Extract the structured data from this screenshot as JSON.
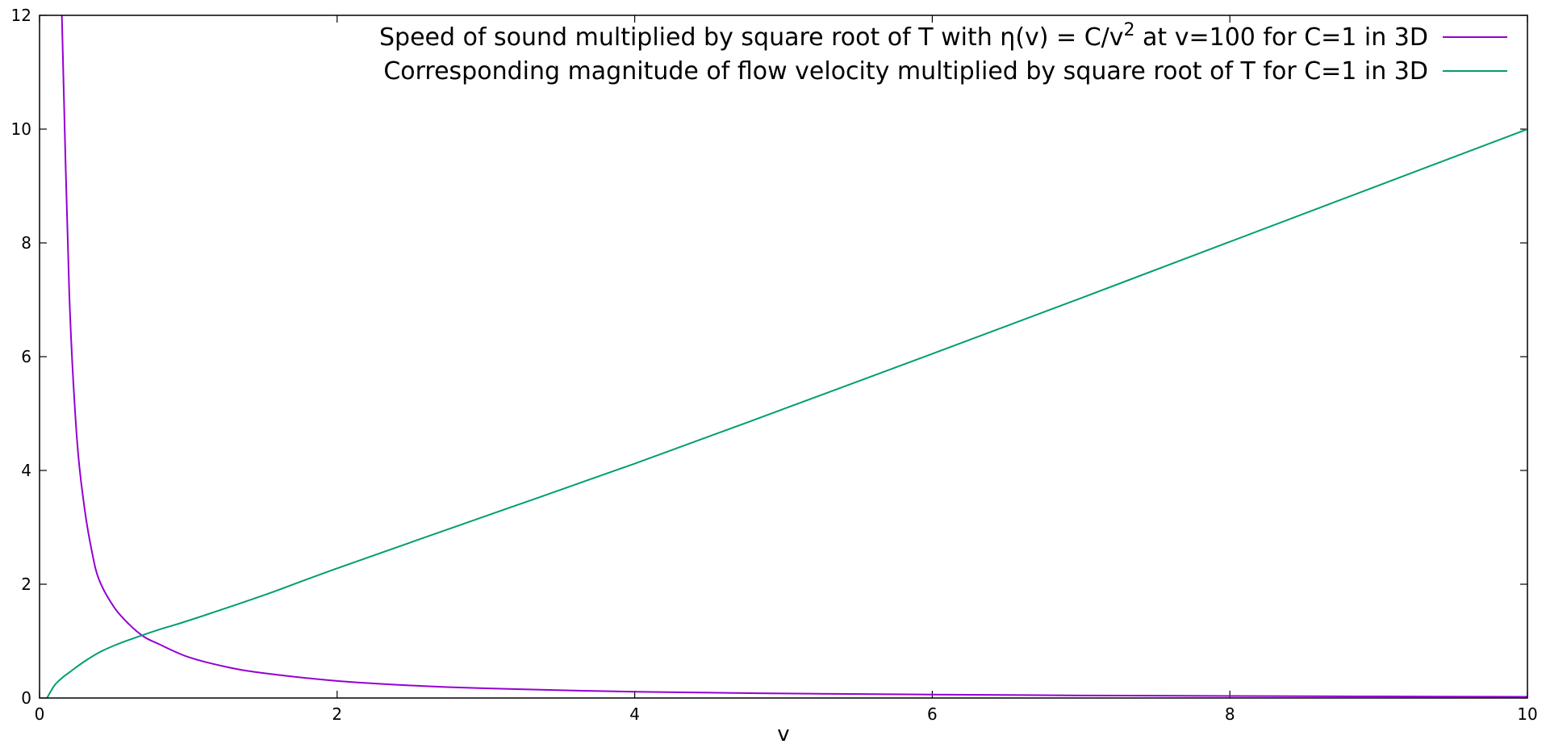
{
  "chart_data": {
    "type": "line",
    "xlabel": "v",
    "ylabel": "",
    "xlim": [
      0,
      10
    ],
    "ylim": [
      0,
      12
    ],
    "x_ticks": [
      "0",
      "2",
      "4",
      "6",
      "8",
      "10"
    ],
    "y_ticks": [
      "0",
      "2",
      "4",
      "6",
      "8",
      "10",
      "12"
    ],
    "legend_position": "top-right",
    "grid": false,
    "series": [
      {
        "name_prefix": "Speed of sound multiplied by square root of T with η(v) = C/v",
        "name_sup": "2",
        "name_suffix": " at v=100 for C=1 in 3D",
        "color": "#9400d3",
        "x": [
          0.15,
          0.2,
          0.25,
          0.3,
          0.35,
          0.4,
          0.5,
          0.6,
          0.7,
          0.8,
          1.0,
          1.25,
          1.5,
          2.0,
          2.5,
          3.0,
          4.0,
          5.0,
          6.0,
          7.0,
          8.0,
          9.0,
          10.0
        ],
        "y": [
          12.0,
          7.1,
          4.6,
          3.38,
          2.6,
          2.08,
          1.6,
          1.3,
          1.08,
          0.95,
          0.72,
          0.55,
          0.44,
          0.3,
          0.22,
          0.17,
          0.11,
          0.08,
          0.06,
          0.045,
          0.035,
          0.028,
          0.022
        ]
      },
      {
        "name": "Corresponding magnitude of flow velocity multiplied by square root of T for C=1 in 3D",
        "color": "#009e73",
        "x": [
          0.05,
          0.1,
          0.15,
          0.2,
          0.3,
          0.4,
          0.5,
          0.6,
          0.8,
          1.0,
          1.5,
          2.0,
          3.0,
          4.0,
          5.0,
          6.0,
          7.0,
          8.0,
          9.0,
          10.0
        ],
        "y": [
          0.0,
          0.22,
          0.35,
          0.45,
          0.64,
          0.8,
          0.92,
          1.02,
          1.2,
          1.36,
          1.8,
          2.28,
          3.2,
          4.12,
          5.08,
          6.05,
          7.03,
          8.02,
          9.01,
          10.0
        ]
      }
    ]
  }
}
